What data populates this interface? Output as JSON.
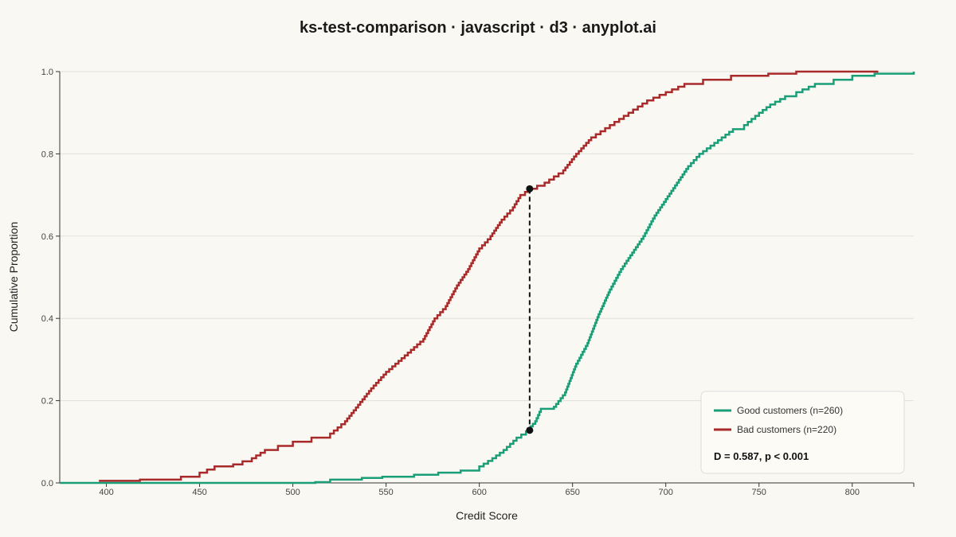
{
  "chart_data": {
    "type": "line",
    "title": "ks-test-comparison · javascript · d3 · anyplot.ai",
    "xlabel": "Credit Score",
    "ylabel": "Cumulative Proportion",
    "xlim": [
      375,
      833
    ],
    "ylim": [
      0,
      1
    ],
    "x_ticks": [
      400,
      450,
      500,
      550,
      600,
      650,
      700,
      750,
      800
    ],
    "y_ticks": [
      0,
      0.2,
      0.4,
      0.6,
      0.8,
      1
    ],
    "y_tick_labels": [
      "0.0",
      "0.2",
      "0.4",
      "0.6",
      "0.8",
      "1.0"
    ],
    "grid": "horizontal",
    "legend_position": "bottom-right",
    "series": [
      {
        "name": "Good customers (n=260)",
        "color": "#1A9E77",
        "x": [
          375,
          512,
          520,
          537,
          548,
          565,
          578,
          590,
          600,
          607,
          613,
          620,
          625,
          630,
          633,
          640,
          646,
          652,
          658,
          664,
          670,
          676,
          682,
          688,
          694,
          700,
          706,
          712,
          718,
          724,
          730,
          736,
          742,
          750,
          756,
          764,
          770,
          780,
          790,
          800,
          812,
          833
        ],
        "y": [
          0,
          0.002,
          0.008,
          0.012,
          0.015,
          0.02,
          0.025,
          0.03,
          0.04,
          0.06,
          0.08,
          0.11,
          0.125,
          0.15,
          0.18,
          0.185,
          0.22,
          0.29,
          0.34,
          0.41,
          0.47,
          0.52,
          0.56,
          0.6,
          0.65,
          0.69,
          0.73,
          0.77,
          0.8,
          0.82,
          0.84,
          0.86,
          0.87,
          0.9,
          0.92,
          0.94,
          0.95,
          0.97,
          0.98,
          0.99,
          0.995,
          1.0
        ]
      },
      {
        "name": "Bad customers (n=220)",
        "color": "#A82A2A",
        "x": [
          396,
          418,
          440,
          450,
          458,
          468,
          478,
          485,
          492,
          500,
          510,
          520,
          528,
          535,
          542,
          550,
          560,
          570,
          576,
          582,
          588,
          594,
          600,
          606,
          612,
          618,
          622,
          627,
          635,
          645,
          652,
          660,
          670,
          680,
          690,
          700,
          710,
          720,
          735,
          755,
          770,
          790,
          814
        ],
        "y": [
          0.005,
          0.008,
          0.015,
          0.025,
          0.04,
          0.045,
          0.06,
          0.08,
          0.09,
          0.1,
          0.11,
          0.12,
          0.15,
          0.19,
          0.23,
          0.27,
          0.31,
          0.35,
          0.4,
          0.43,
          0.48,
          0.52,
          0.57,
          0.6,
          0.64,
          0.67,
          0.7,
          0.715,
          0.73,
          0.76,
          0.8,
          0.84,
          0.87,
          0.9,
          0.93,
          0.95,
          0.97,
          0.98,
          0.99,
          0.995,
          1.0,
          1.0,
          1.0
        ]
      }
    ],
    "ks_marker": {
      "x": 627,
      "y_good": 0.128,
      "y_bad": 0.715
    },
    "annotation": "D = 0.587, p < 0.001",
    "colors": {
      "background": "#FAF8F2",
      "grid": "#E2E0DA",
      "axis": "#333333",
      "marker": "#111111",
      "legend_bg": "#FDFBF6",
      "legend_border": "#DDDDDD"
    }
  }
}
